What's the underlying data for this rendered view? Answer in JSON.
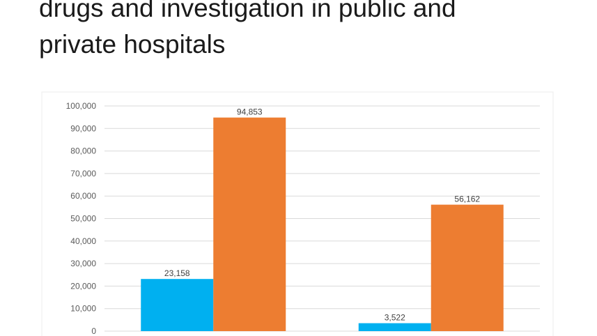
{
  "slide": {
    "title_line1": "drugs and investigation in public and",
    "title_line2": "private hospitals"
  },
  "chart_data": {
    "type": "bar",
    "title": "",
    "xlabel": "",
    "ylabel": "",
    "ylim": [
      0,
      100000
    ],
    "yticks": [
      0,
      10000,
      20000,
      30000,
      40000,
      50000,
      60000,
      70000,
      80000,
      90000,
      100000
    ],
    "ytick_labels": [
      "0",
      "10,000",
      "20,000",
      "30,000",
      "40,000",
      "50,000",
      "60,000",
      "70,000",
      "80,000",
      "90,000",
      "100,000"
    ],
    "grid": true,
    "categories": [
      "",
      ""
    ],
    "series": [
      {
        "values": [
          23158,
          3522
        ],
        "labels": [
          "23,158",
          "3,522"
        ],
        "color": "#00b0f0"
      },
      {
        "values": [
          94853,
          56162
        ],
        "labels": [
          "94,853",
          "56,162"
        ],
        "color": "#ed7d31"
      }
    ]
  }
}
